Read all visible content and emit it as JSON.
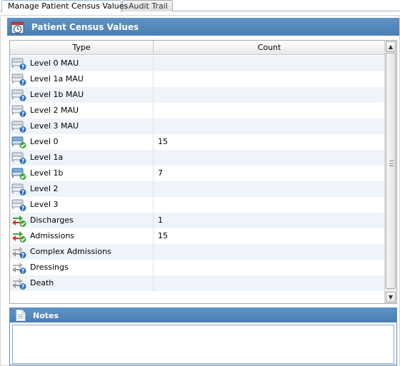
{
  "tabs": [
    {
      "label": "Manage Patient Census Values",
      "active": true
    },
    {
      "label": "Audit Trail",
      "active": false
    }
  ],
  "panel": {
    "title": "Patient Census Values"
  },
  "grid": {
    "columns": {
      "type": "Type",
      "count": "Count"
    },
    "rows": [
      {
        "type": "Level 0 MAU",
        "count": "",
        "icon": "bed-question-icon"
      },
      {
        "type": "Level 1a MAU",
        "count": "",
        "icon": "bed-question-icon"
      },
      {
        "type": "Level 1b MAU",
        "count": "",
        "icon": "bed-question-icon"
      },
      {
        "type": "Level 2 MAU",
        "count": "",
        "icon": "bed-question-icon"
      },
      {
        "type": "Level 3 MAU",
        "count": "",
        "icon": "bed-question-icon"
      },
      {
        "type": "Level 0",
        "count": "15",
        "icon": "bed-check-icon"
      },
      {
        "type": "Level 1a",
        "count": "",
        "icon": "bed-question-icon"
      },
      {
        "type": "Level 1b",
        "count": "7",
        "icon": "bed-check-icon"
      },
      {
        "type": "Level 2",
        "count": "",
        "icon": "bed-question-icon"
      },
      {
        "type": "Level 3",
        "count": "",
        "icon": "bed-question-icon"
      },
      {
        "type": "Discharges",
        "count": "1",
        "icon": "transfer-check-icon"
      },
      {
        "type": "Admissions",
        "count": "15",
        "icon": "transfer-check-icon"
      },
      {
        "type": "Complex Admissions",
        "count": "",
        "icon": "transfer-question-icon"
      },
      {
        "type": "Dressings",
        "count": "",
        "icon": "transfer-question-icon"
      },
      {
        "type": "Death",
        "count": "",
        "icon": "transfer-question-icon"
      }
    ]
  },
  "notes": {
    "title": "Notes",
    "value": ""
  },
  "colors": {
    "header_blue": "#4b7fb3",
    "row_alt": "#eef4fa",
    "check_green": "#3fa635",
    "question_blue": "#2f6fb8"
  }
}
